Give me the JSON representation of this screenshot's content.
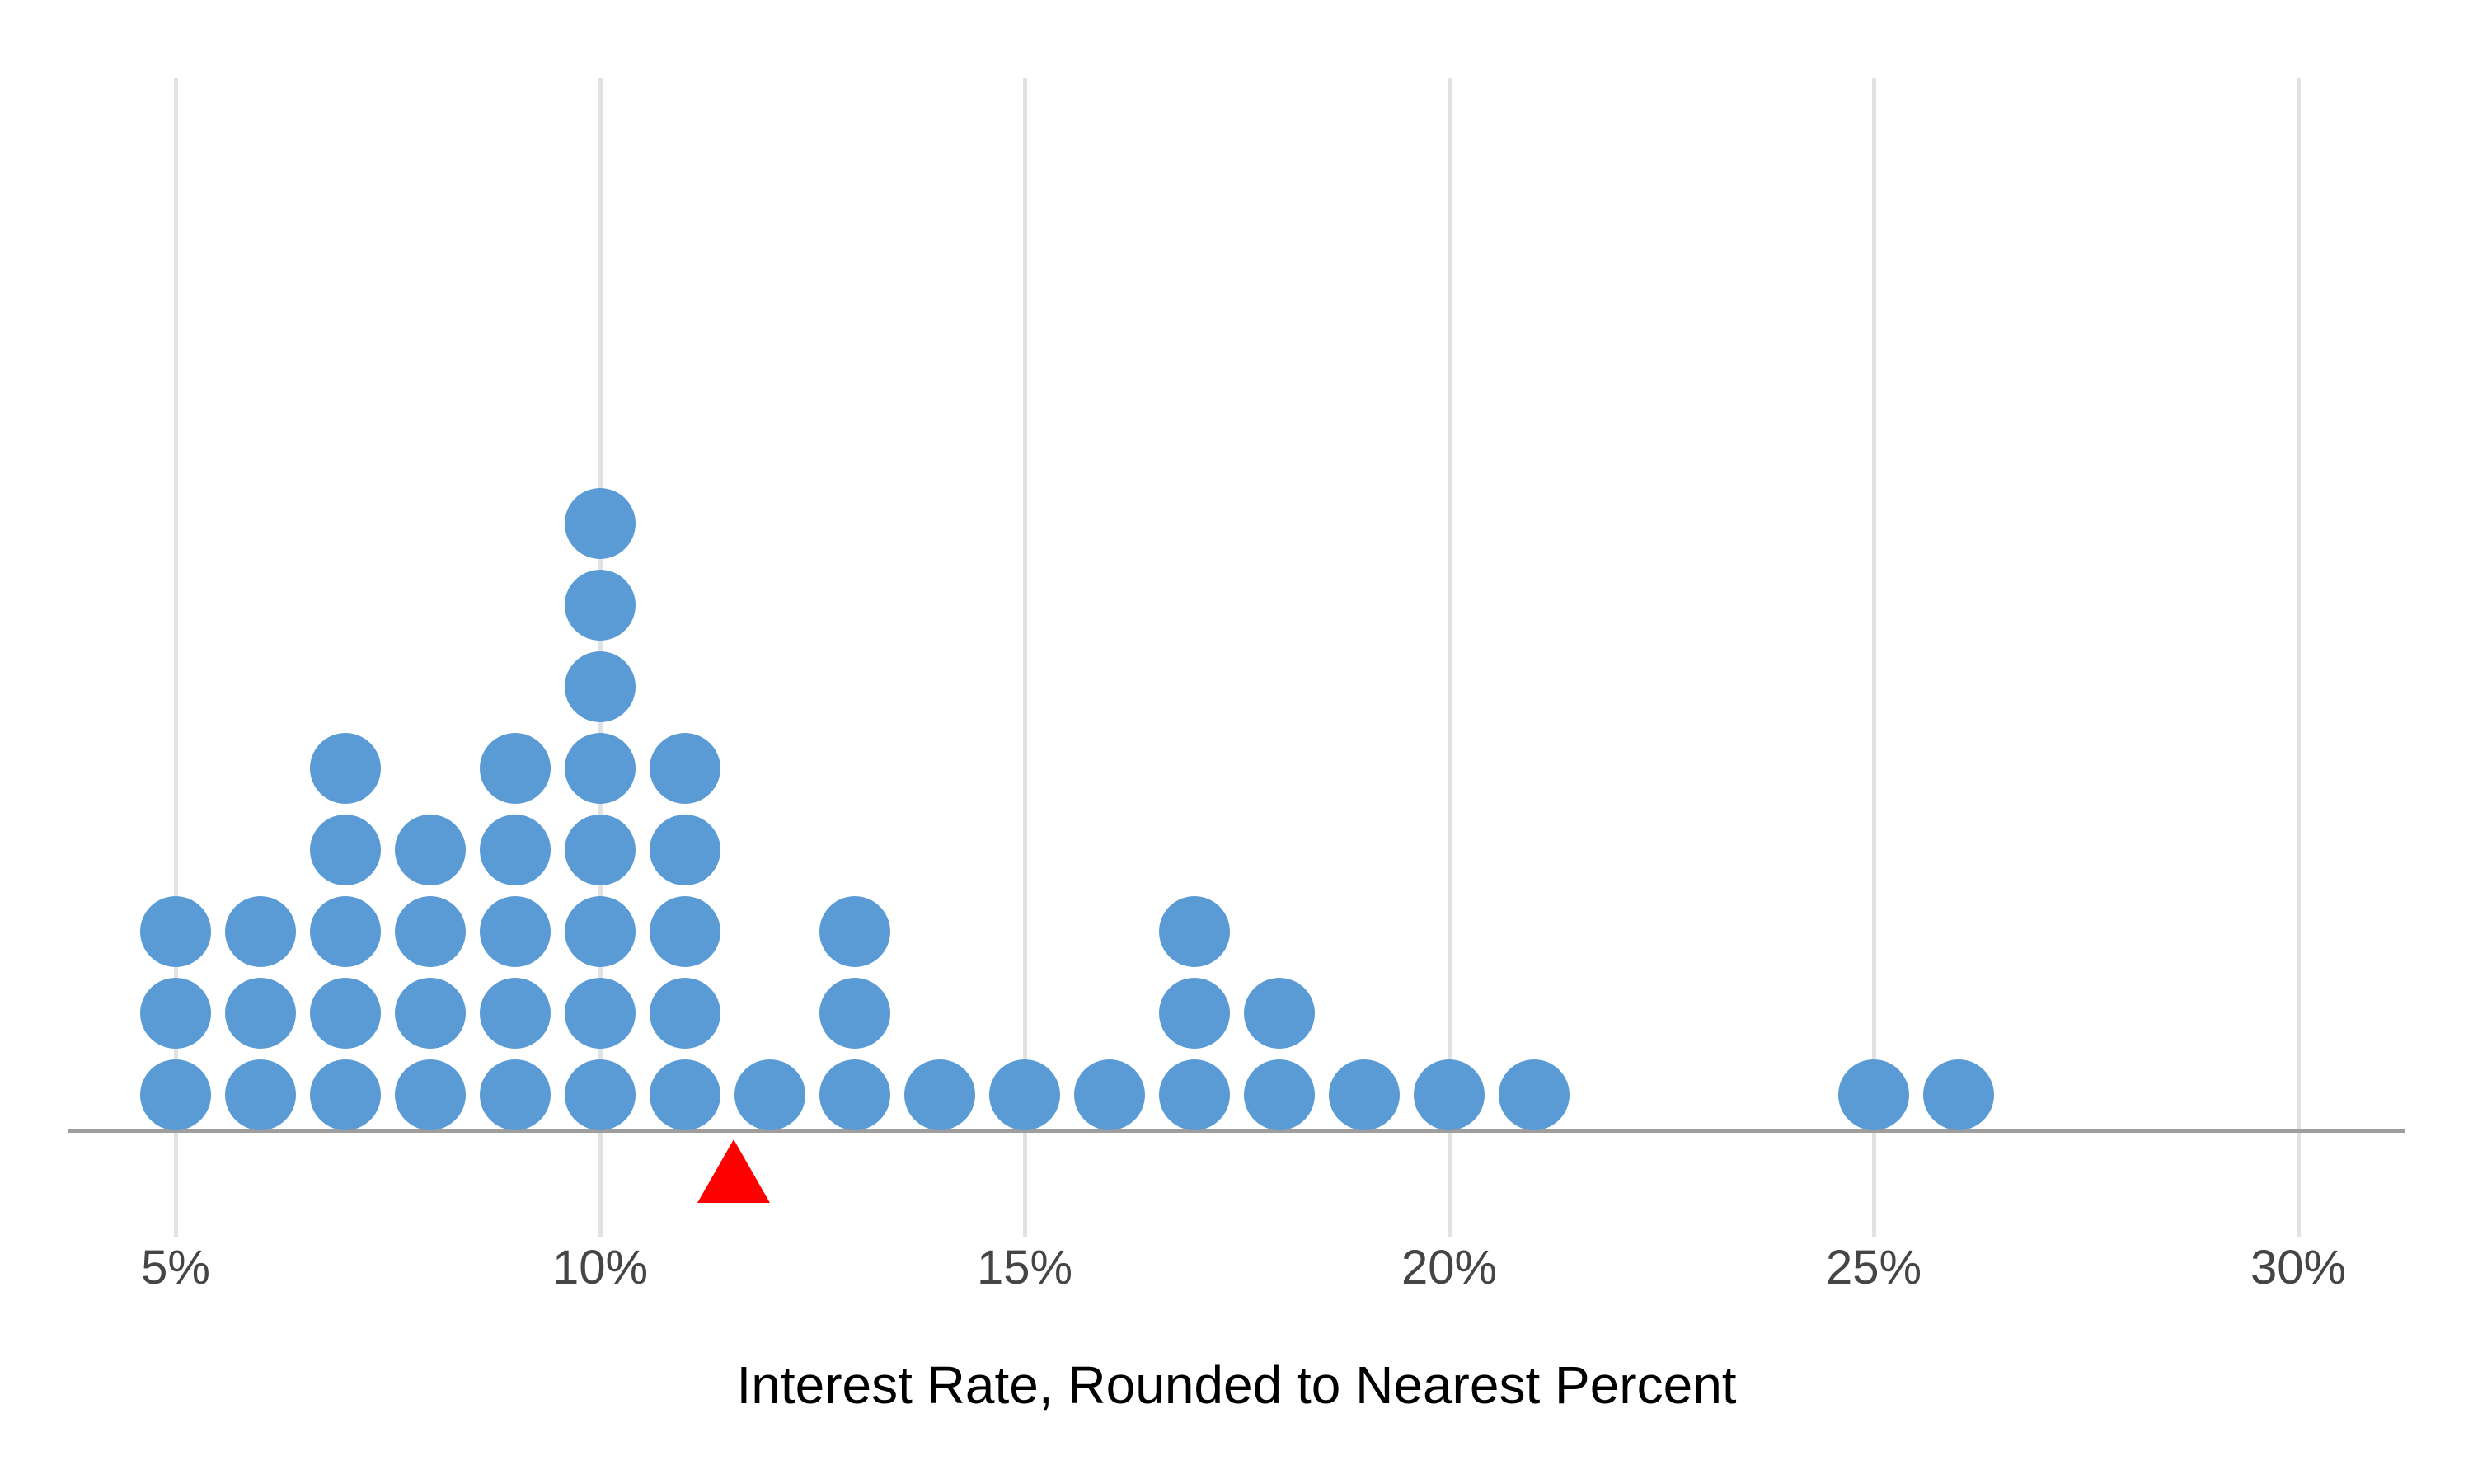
{
  "chart_data": {
    "type": "dotplot",
    "title": "",
    "xlabel": "Interest Rate, Rounded to Nearest Percent",
    "x_tick_labels": [
      "5%",
      "10%",
      "15%",
      "20%",
      "25%",
      "30%"
    ],
    "x_tick_values": [
      5,
      10,
      15,
      20,
      25,
      30
    ],
    "xlim": [
      3.75,
      31.25
    ],
    "grid": "vertical-only",
    "legend": "none",
    "x_unit": "percent",
    "categories": [
      5,
      6,
      7,
      8,
      9,
      10,
      11,
      12,
      13,
      14,
      15,
      16,
      17,
      18,
      19,
      20,
      21,
      25,
      26
    ],
    "counts": [
      3,
      3,
      5,
      4,
      5,
      8,
      5,
      1,
      3,
      1,
      1,
      1,
      3,
      2,
      1,
      1,
      1,
      1,
      1
    ],
    "total_dots": 50,
    "mean_marker": {
      "shape": "triangle-up",
      "value": 11.57,
      "color": "#FF0000",
      "position": "below-axis"
    },
    "colors": {
      "dot": "#5B9BD5",
      "gridline": "#E2E2E2",
      "axis_line": "#9E9E9E",
      "tick_label": "#454545",
      "axis_title": "#000000",
      "background": "#FFFFFF"
    }
  }
}
